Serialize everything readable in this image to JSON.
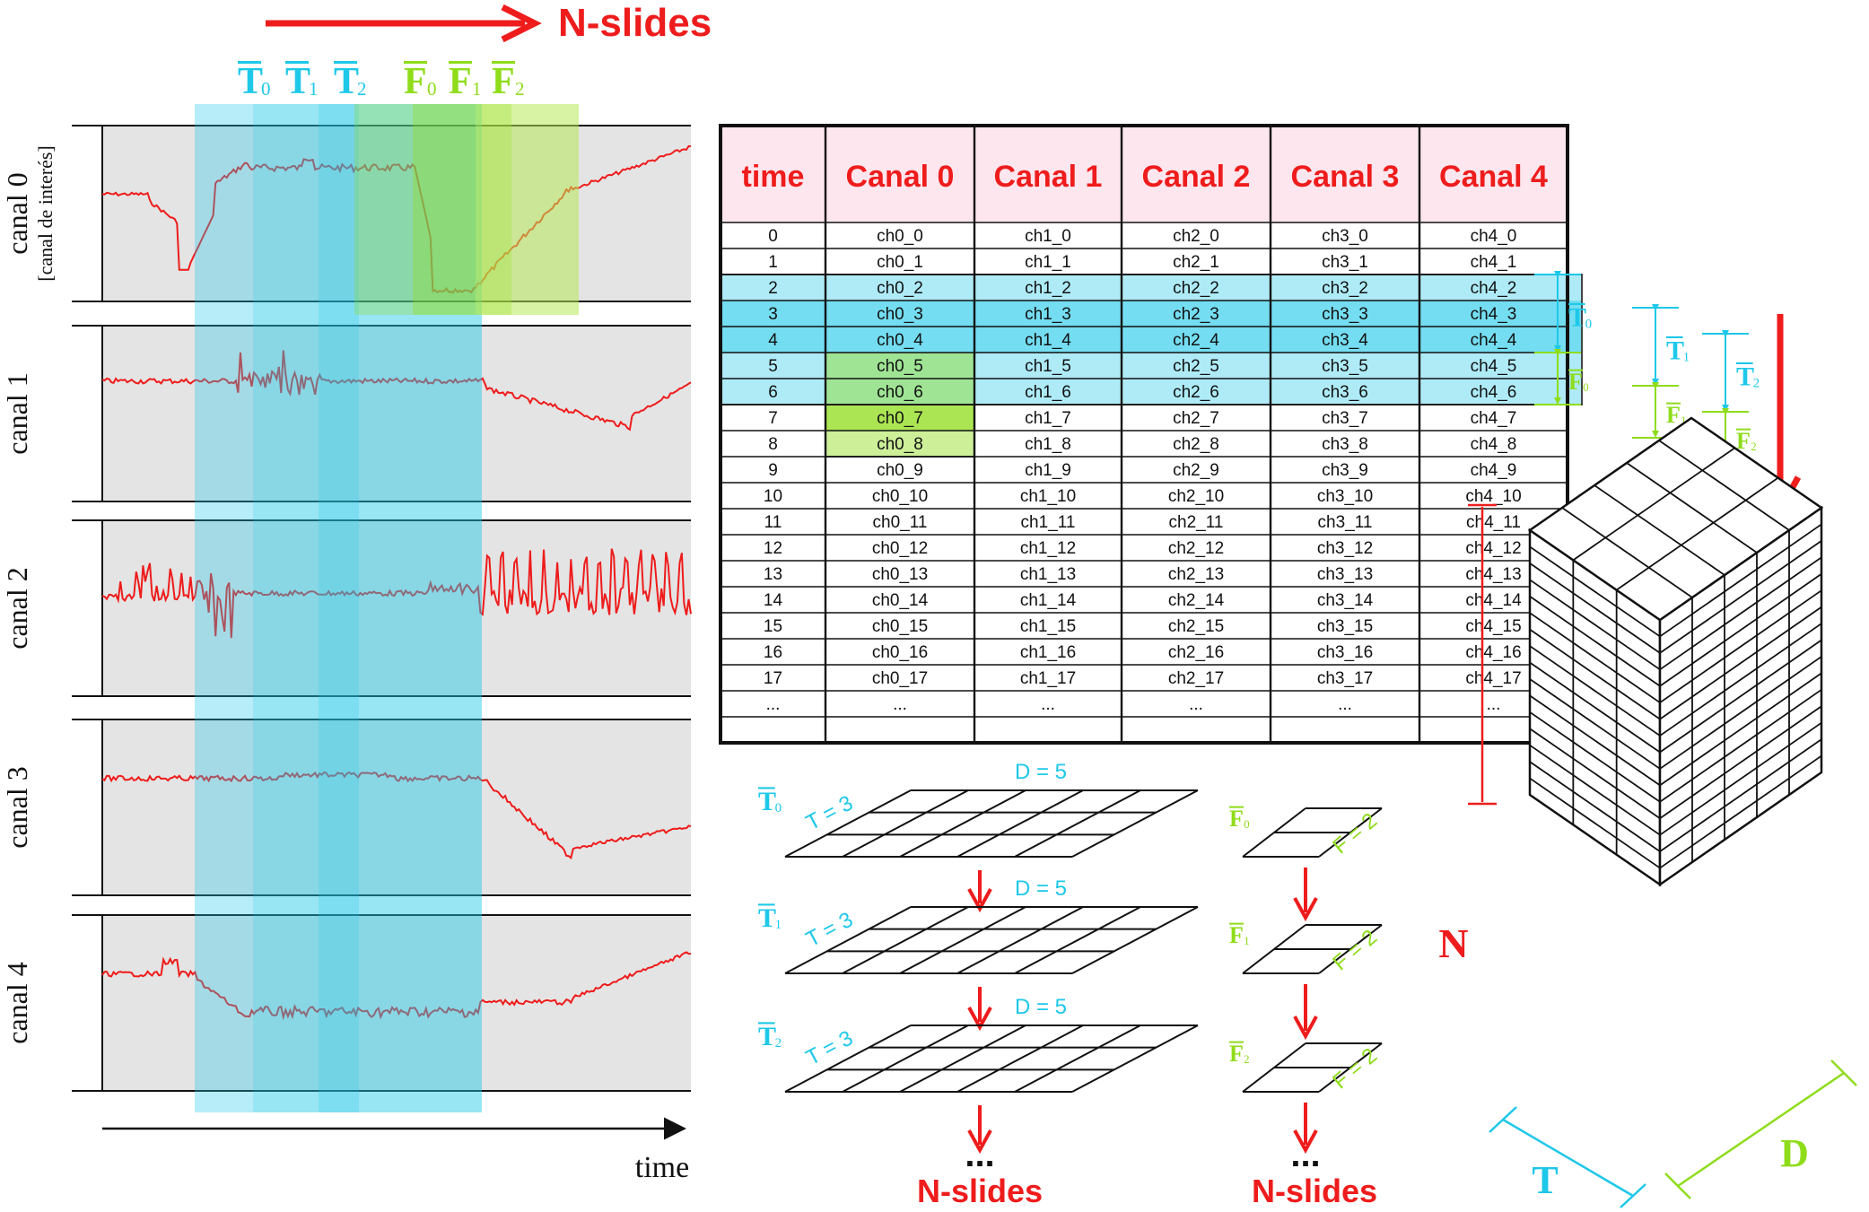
{
  "top": {
    "nslides_label": "N-slides",
    "window_labels": [
      {
        "letter": "T",
        "sub": "0",
        "color": "#1ec8e8"
      },
      {
        "letter": "T",
        "sub": "1",
        "color": "#1ec8e8"
      },
      {
        "letter": "T",
        "sub": "2",
        "color": "#1ec8e8"
      },
      {
        "letter": "F",
        "sub": "0",
        "color": "#8fdc1a"
      },
      {
        "letter": "F",
        "sub": "1",
        "color": "#8fdc1a"
      },
      {
        "letter": "F",
        "sub": "2",
        "color": "#8fdc1a"
      }
    ]
  },
  "signals": {
    "channels": [
      {
        "label": "canal 0",
        "sublabel": "[canal de interés]"
      },
      {
        "label": "canal 1",
        "sublabel": ""
      },
      {
        "label": "canal 2",
        "sublabel": ""
      },
      {
        "label": "canal 3",
        "sublabel": ""
      },
      {
        "label": "canal 4",
        "sublabel": ""
      }
    ],
    "time_label": "time"
  },
  "table": {
    "headers": [
      "time",
      "Canal 0",
      "Canal 1",
      "Canal 2",
      "Canal 3",
      "Canal 4"
    ],
    "rows": [
      [
        "0",
        "ch0_0",
        "ch1_0",
        "ch2_0",
        "ch3_0",
        "ch4_0"
      ],
      [
        "1",
        "ch0_1",
        "ch1_1",
        "ch2_1",
        "ch3_1",
        "ch4_1"
      ],
      [
        "2",
        "ch0_2",
        "ch1_2",
        "ch2_2",
        "ch3_2",
        "ch4_2"
      ],
      [
        "3",
        "ch0_3",
        "ch1_3",
        "ch2_3",
        "ch3_3",
        "ch4_3"
      ],
      [
        "4",
        "ch0_4",
        "ch1_4",
        "ch2_4",
        "ch3_4",
        "ch4_4"
      ],
      [
        "5",
        "ch0_5",
        "ch1_5",
        "ch2_5",
        "ch3_5",
        "ch4_5"
      ],
      [
        "6",
        "ch0_6",
        "ch1_6",
        "ch2_6",
        "ch3_6",
        "ch4_6"
      ],
      [
        "7",
        "ch0_7",
        "ch1_7",
        "ch2_7",
        "ch3_7",
        "ch4_7"
      ],
      [
        "8",
        "ch0_8",
        "ch1_8",
        "ch2_8",
        "ch3_8",
        "ch4_8"
      ],
      [
        "9",
        "ch0_9",
        "ch1_9",
        "ch2_9",
        "ch3_9",
        "ch4_9"
      ],
      [
        "10",
        "ch0_10",
        "ch1_10",
        "ch2_10",
        "ch3_10",
        "ch4_10"
      ],
      [
        "11",
        "ch0_11",
        "ch1_11",
        "ch2_11",
        "ch3_11",
        "ch4_11"
      ],
      [
        "12",
        "ch0_12",
        "ch1_12",
        "ch2_12",
        "ch3_12",
        "ch4_12"
      ],
      [
        "13",
        "ch0_13",
        "ch1_13",
        "ch2_13",
        "ch3_13",
        "ch4_13"
      ],
      [
        "14",
        "ch0_14",
        "ch1_14",
        "ch2_14",
        "ch3_14",
        "ch4_14"
      ],
      [
        "15",
        "ch0_15",
        "ch1_15",
        "ch2_15",
        "ch3_15",
        "ch4_15"
      ],
      [
        "16",
        "ch0_16",
        "ch1_16",
        "ch2_16",
        "ch3_16",
        "ch4_16"
      ],
      [
        "17",
        "ch0_17",
        "ch1_17",
        "ch2_17",
        "ch3_17",
        "ch4_17"
      ],
      [
        "...",
        "...",
        "...",
        "...",
        "...",
        "..."
      ]
    ],
    "header_bg": "#fde6ee",
    "t_window_rows": [
      2,
      6
    ],
    "t_strong_rows": [
      3,
      4
    ],
    "f_cells": [
      5,
      6,
      7,
      8
    ],
    "side_labels": {
      "nslides": "N-slides",
      "t": [
        {
          "letter": "T",
          "sub": "0"
        },
        {
          "letter": "T",
          "sub": "1"
        },
        {
          "letter": "T",
          "sub": "2"
        }
      ],
      "f": [
        {
          "letter": "F",
          "sub": "0"
        },
        {
          "letter": "F",
          "sub": "1"
        },
        {
          "letter": "F",
          "sub": "2"
        }
      ]
    }
  },
  "grids": {
    "t_sets": [
      {
        "letter": "T",
        "sub": "0",
        "d_label": "D = 5",
        "t_label": "T = 3"
      },
      {
        "letter": "T",
        "sub": "1",
        "d_label": "D = 5",
        "t_label": "T = 3"
      },
      {
        "letter": "T",
        "sub": "2",
        "d_label": "D = 5",
        "t_label": "T = 3"
      }
    ],
    "f_sets": [
      {
        "letter": "F",
        "sub": "0",
        "f_label": "F = 2"
      },
      {
        "letter": "F",
        "sub": "1",
        "f_label": "F = 2"
      },
      {
        "letter": "F",
        "sub": "2",
        "f_label": "F = 2"
      }
    ],
    "nslides_left": "N-slides",
    "nslides_right": "N-slides",
    "dots": "..."
  },
  "tensor": {
    "n_label": "N",
    "t_label": "T",
    "d_label": "D"
  },
  "colors": {
    "red": "#ee1c1c",
    "cyan": "#1ec8e8",
    "lime": "#8fdc1a",
    "panel_bg": "#e4e4e4"
  }
}
